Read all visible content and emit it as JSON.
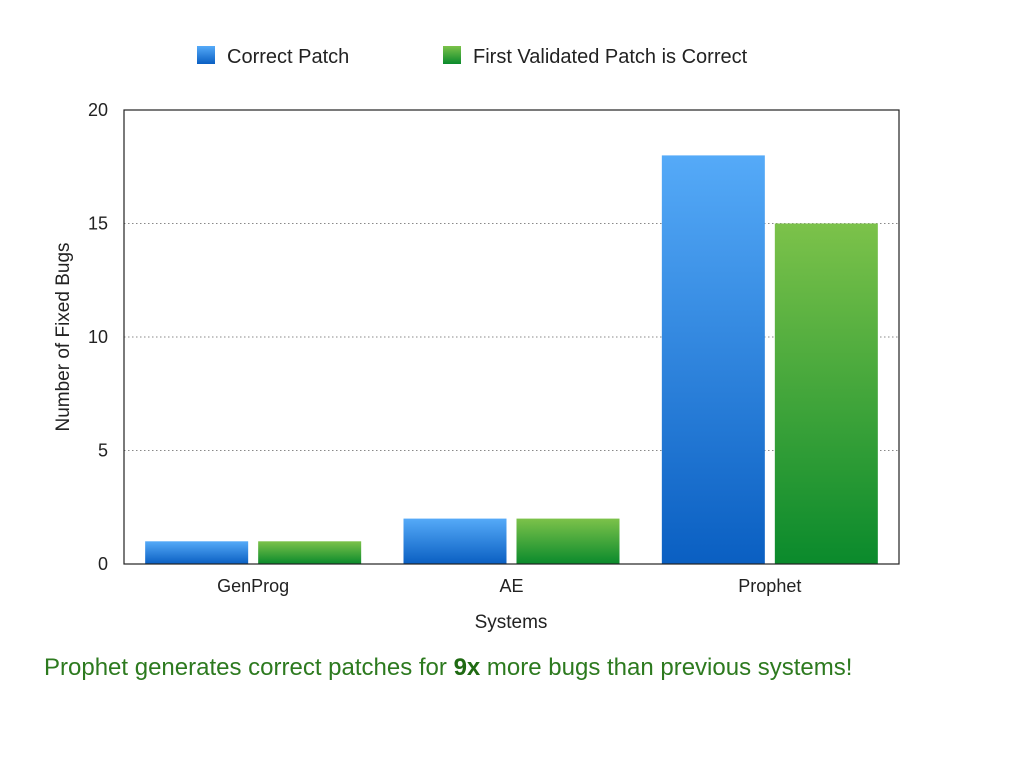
{
  "chart_data": {
    "type": "bar",
    "categories": [
      "GenProg",
      "AE",
      "Prophet"
    ],
    "series": [
      {
        "name": "Correct Patch",
        "values": [
          1,
          2,
          18
        ],
        "color": "#2f84e0",
        "gradient": [
          "#55aaf8",
          "#0a5fc2"
        ]
      },
      {
        "name": "First Validated Patch is Correct",
        "values": [
          1,
          2,
          15
        ],
        "color": "#3ca63a",
        "gradient": [
          "#7cc24a",
          "#0a8a2c"
        ]
      }
    ],
    "title": "",
    "xlabel": "Systems",
    "ylabel": "Number of Fixed Bugs",
    "ylim": [
      0,
      20
    ],
    "yticks": [
      0,
      5,
      10,
      15,
      20
    ],
    "grid": true,
    "legend_position": "top"
  },
  "caption": {
    "before": "Prophet generates correct patches for ",
    "emphasis": "9x",
    "after": " more bugs than previous systems!"
  },
  "colors": {
    "caption": "#2d7a1f",
    "axis": "#222222",
    "grid": "#888888"
  }
}
